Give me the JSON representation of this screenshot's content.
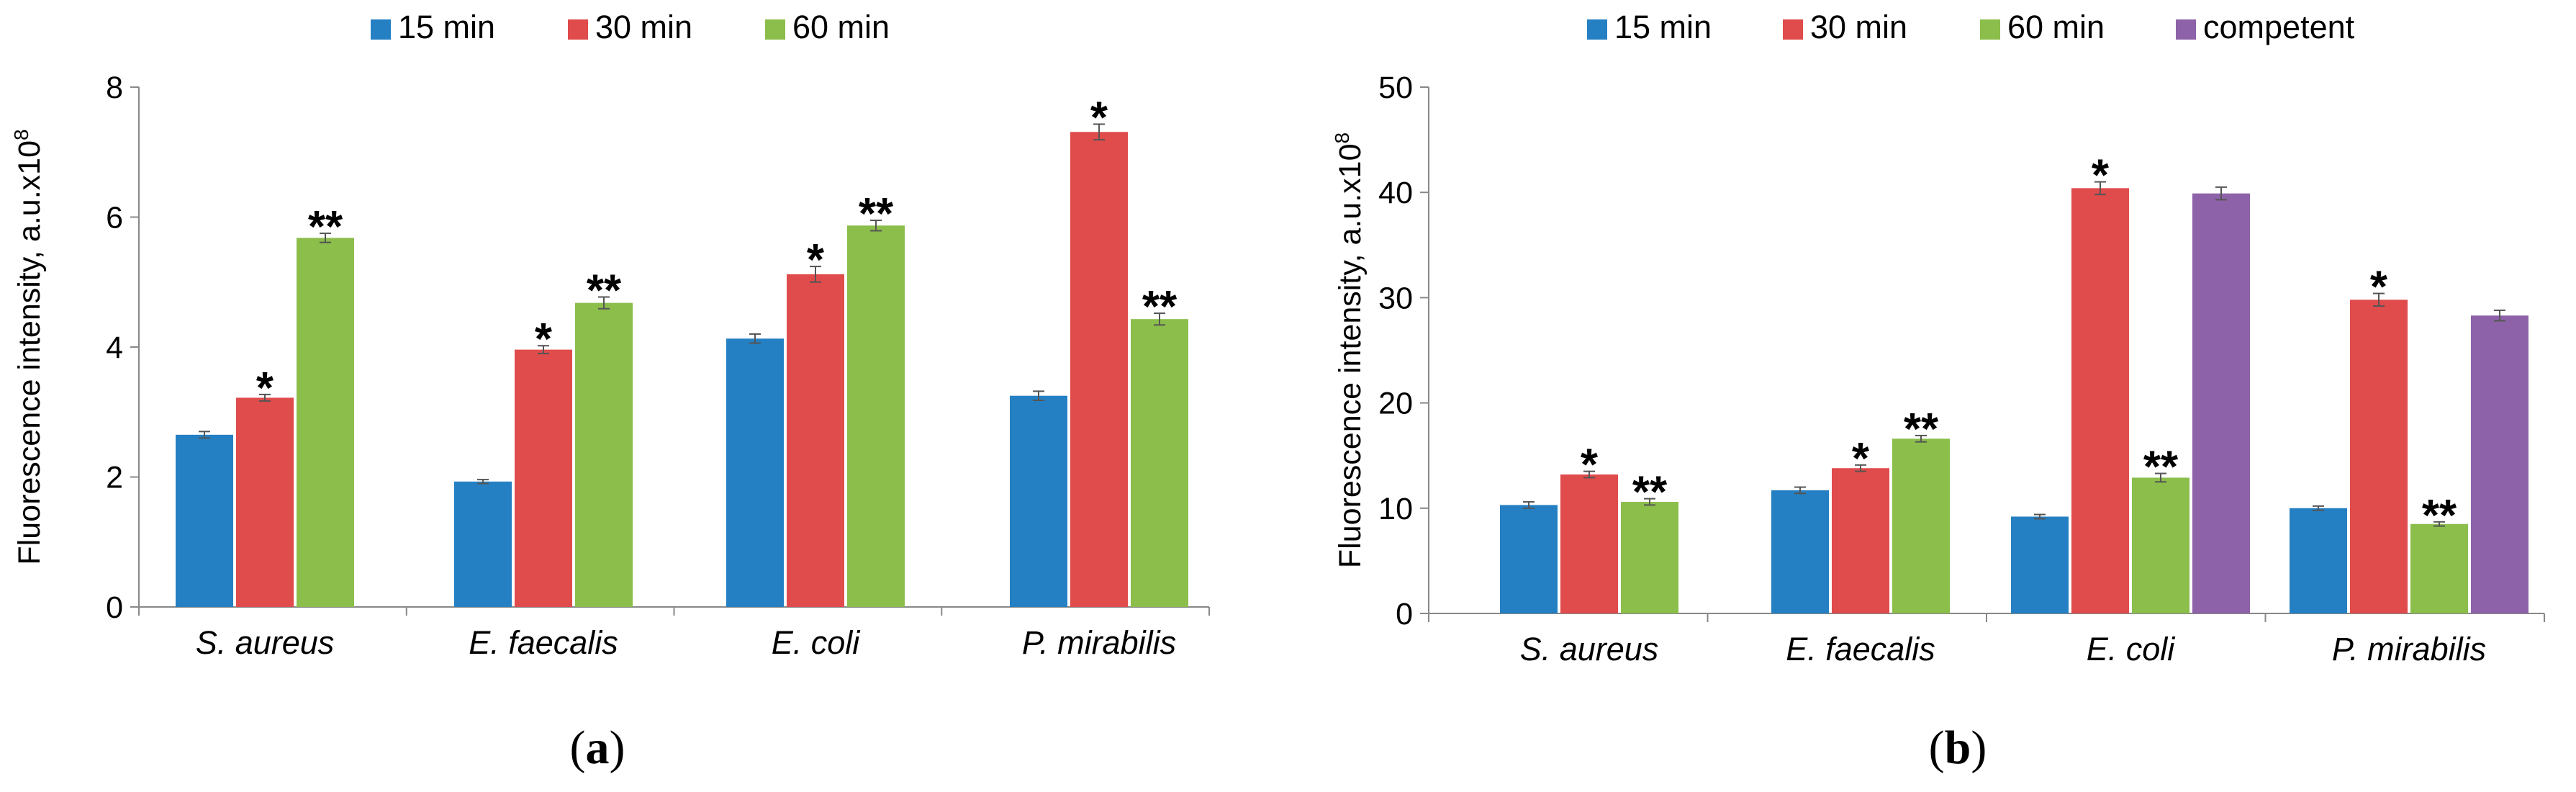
{
  "chart_data": [
    {
      "type": "bar",
      "panel_label": "a",
      "categories": [
        "S. aureus",
        "E. faecalis",
        "E. coli",
        "P. mirabilis"
      ],
      "series": [
        {
          "name": "15 min",
          "color": "#2580C3",
          "values": [
            2.65,
            1.93,
            4.13,
            3.25
          ],
          "errors": [
            0.05,
            0.03,
            0.07,
            0.07
          ],
          "marks": [
            "",
            "",
            "",
            ""
          ]
        },
        {
          "name": "30 min",
          "color": "#E04B4B",
          "values": [
            3.22,
            3.96,
            5.12,
            7.31
          ],
          "errors": [
            0.05,
            0.06,
            0.12,
            0.12
          ],
          "marks": [
            "*",
            "*",
            "*",
            "*"
          ]
        },
        {
          "name": "60 min",
          "color": "#8BBE4B",
          "values": [
            5.68,
            4.68,
            5.87,
            4.43
          ],
          "errors": [
            0.07,
            0.09,
            0.08,
            0.09
          ],
          "marks": [
            "**",
            "**",
            "**",
            "**"
          ]
        }
      ],
      "ylabel": "Fluorescence intensity, a.u.x10",
      "ylabel_sup": "8",
      "ylim": [
        0,
        8
      ],
      "yticks": [
        "0",
        "2",
        "4",
        "6",
        "8"
      ]
    },
    {
      "type": "bar",
      "panel_label": "b",
      "categories": [
        "S. aureus",
        "E. faecalis",
        "E. coli",
        "P. mirabilis"
      ],
      "series": [
        {
          "name": "15 min",
          "color": "#2580C3",
          "values": [
            10.3,
            11.7,
            9.2,
            10.0
          ],
          "errors": [
            0.3,
            0.3,
            0.2,
            0.2
          ],
          "marks": [
            "",
            "",
            "",
            ""
          ]
        },
        {
          "name": "30 min",
          "color": "#E04B4B",
          "values": [
            13.2,
            13.8,
            40.4,
            29.8
          ],
          "errors": [
            0.3,
            0.3,
            0.6,
            0.6
          ],
          "marks": [
            "*",
            "*",
            "*",
            "*"
          ]
        },
        {
          "name": "60 min",
          "color": "#8BBE4B",
          "values": [
            10.6,
            16.6,
            12.9,
            8.5
          ],
          "errors": [
            0.3,
            0.3,
            0.4,
            0.2
          ],
          "marks": [
            "**",
            "**",
            "**",
            "**"
          ]
        },
        {
          "name": "competent",
          "color": "#8E62A8",
          "values": [
            null,
            null,
            39.9,
            28.3
          ],
          "errors": [
            null,
            null,
            0.6,
            0.5
          ],
          "marks": [
            "",
            "",
            "",
            ""
          ]
        }
      ],
      "ylabel": "Fluorescence intensity, a.u.x10",
      "ylabel_sup": "8",
      "ylim": [
        0,
        50
      ],
      "yticks": [
        "0",
        "10",
        "20",
        "30",
        "40",
        "50"
      ]
    }
  ]
}
